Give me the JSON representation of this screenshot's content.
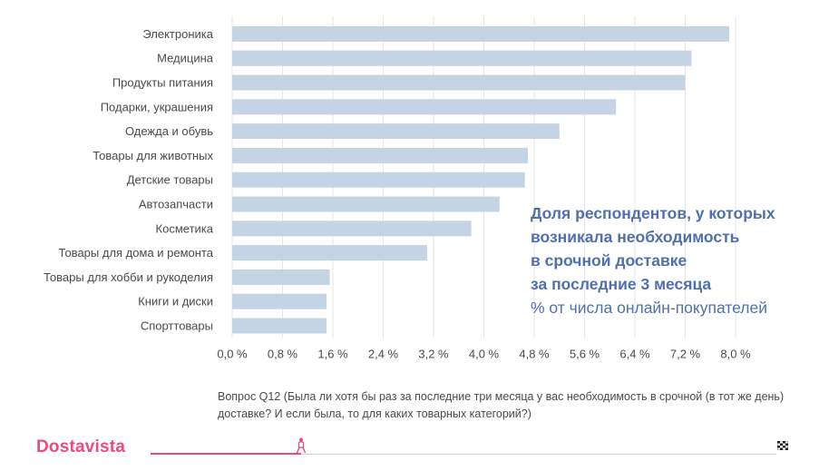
{
  "chart_data": {
    "type": "bar",
    "orientation": "horizontal",
    "categories": [
      "Электроника",
      "Медицина",
      "Продукты питания",
      "Подарки, украшения",
      "Одежда и обувь",
      "Товары для животных",
      "Детские товары",
      "Автозапчасти",
      "Косметика",
      "Товары для дома и ремонта",
      "Товары для хобби и рукоделия",
      "Книги и диски",
      "Спорттовары"
    ],
    "values": [
      7.9,
      7.3,
      7.2,
      6.1,
      5.2,
      4.7,
      4.65,
      4.25,
      3.8,
      3.1,
      1.55,
      1.5,
      1.5
    ],
    "xlim": [
      0,
      8.0
    ],
    "xticks": [
      0.0,
      0.8,
      1.6,
      2.4,
      3.2,
      4.0,
      4.8,
      5.6,
      6.4,
      7.2,
      8.0
    ],
    "xtick_labels": [
      "0,0 %",
      "0,8 %",
      "1,6 %",
      "2,4 %",
      "3,2 %",
      "4,0 %",
      "4,8 %",
      "5,6 %",
      "6,4 %",
      "7,2 %",
      "8,0 %"
    ],
    "grid": "vertical",
    "bar_color": "#c5d4e4"
  },
  "callout": {
    "title": "Доля респондентов, у которых\nвозникала необходимость\nв срочной доставке\nза последние 3 месяца",
    "subtitle": "% от числа онлайн-покупателей"
  },
  "question": "Вопрос Q12 (Была ли хотя бы раз за последние три месяца у вас необходимость в срочной (в тот же день) доставке? И если была, то для каких товарных категорий?)",
  "footer": {
    "brand": "Dostavista",
    "progress": 0.24,
    "runner_icon": "runner-icon",
    "finish_icon": "checkered-flag-icon",
    "accent": "#ea4c7c"
  }
}
